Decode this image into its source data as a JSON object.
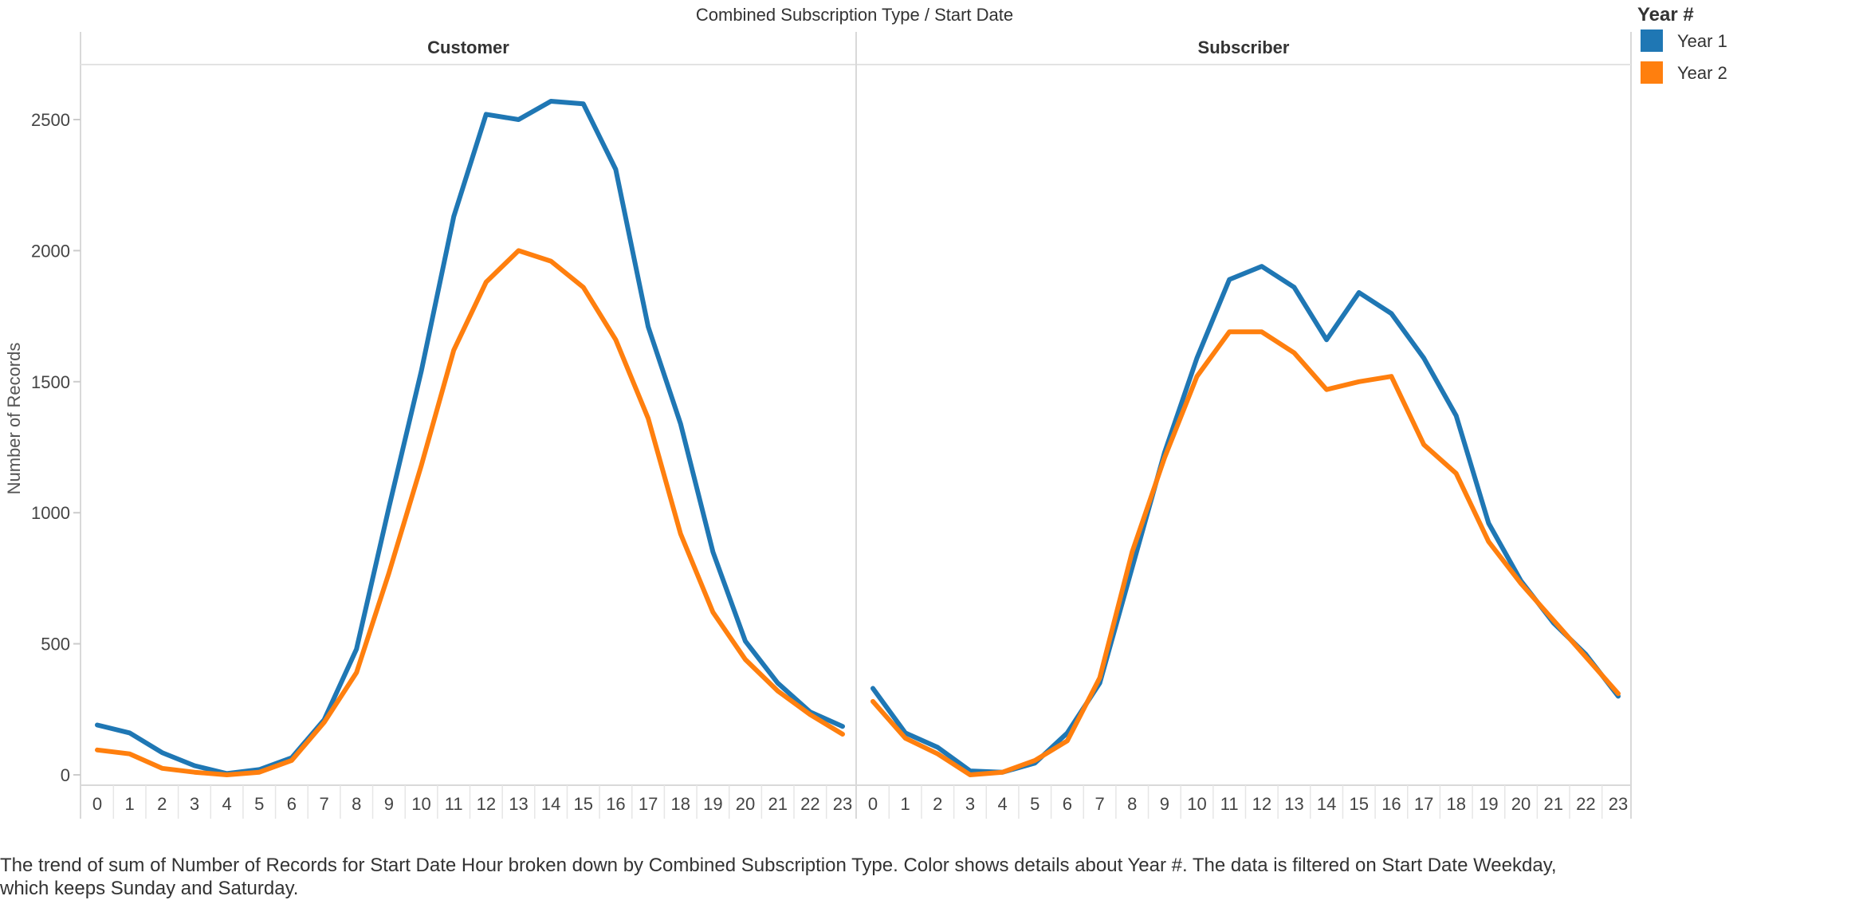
{
  "chart_data": {
    "type": "line",
    "title": "Combined Subscription Type  /  Start Date",
    "ylabel": "Number of Records",
    "ylim": [
      0,
      2750
    ],
    "y_ticks": [
      0,
      500,
      1000,
      1500,
      2000,
      2500
    ],
    "x_ticks": [
      0,
      1,
      2,
      3,
      4,
      5,
      6,
      7,
      8,
      9,
      10,
      11,
      12,
      13,
      14,
      15,
      16,
      17,
      18,
      19,
      20,
      21,
      22,
      23
    ],
    "grid": false,
    "legend": {
      "title": "Year #",
      "position": "top-right",
      "entries": [
        {
          "name": "Year 1",
          "color": "#1f77b4"
        },
        {
          "name": "Year 2",
          "color": "#ff7f0e"
        }
      ]
    },
    "panels": [
      {
        "title": "Customer",
        "series": [
          {
            "name": "Year 1",
            "color": "#1f77b4",
            "values": [
              190,
              160,
              85,
              35,
              5,
              20,
              65,
              210,
              480,
              1020,
              1540,
              2130,
              2520,
              2500,
              2570,
              2560,
              2310,
              1710,
              1340,
              850,
              510,
              350,
              240,
              185
            ]
          },
          {
            "name": "Year 2",
            "color": "#ff7f0e",
            "values": [
              95,
              80,
              25,
              10,
              0,
              10,
              55,
              200,
              390,
              770,
              1180,
              1620,
              1880,
              2000,
              1960,
              1860,
              1660,
              1360,
              920,
              620,
              440,
              320,
              230,
              155
            ]
          }
        ]
      },
      {
        "title": "Subscriber",
        "series": [
          {
            "name": "Year 1",
            "color": "#1f77b4",
            "values": [
              330,
              160,
              105,
              15,
              10,
              45,
              160,
              350,
              790,
              1230,
              1590,
              1890,
              1940,
              1860,
              1660,
              1840,
              1760,
              1590,
              1370,
              960,
              740,
              580,
              460,
              300
            ]
          },
          {
            "name": "Year 2",
            "color": "#ff7f0e",
            "values": [
              280,
              140,
              80,
              0,
              10,
              55,
              130,
              370,
              850,
              1210,
              1520,
              1690,
              1690,
              1610,
              1470,
              1500,
              1520,
              1260,
              1150,
              890,
              730,
              590,
              450,
              310
            ]
          }
        ]
      }
    ]
  },
  "caption": {
    "line1": "The trend of sum of Number of Records for Start Date Hour broken down by Combined Subscription Type.  Color shows details about Year #. The data is filtered on Start Date Weekday,",
    "line2": "which keeps Sunday and Saturday."
  }
}
